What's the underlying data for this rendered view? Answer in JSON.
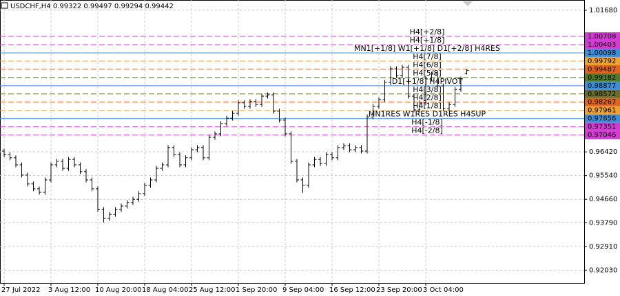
{
  "chart_data": {
    "type": "ohlc",
    "title": "USDCHF,H4  0.99322 0.99497 0.99294 0.99442",
    "categories": [
      "27 Jul 2022",
      null,
      null,
      null,
      null,
      null,
      null,
      null,
      "3 Aug 12:00",
      null,
      null,
      null,
      null,
      null,
      null,
      null,
      "10 Aug 20:00",
      null,
      null,
      null,
      null,
      null,
      null,
      null,
      "18 Aug 04:00",
      null,
      null,
      null,
      null,
      null,
      null,
      null,
      "25 Aug 12:00",
      null,
      null,
      null,
      null,
      null,
      null,
      null,
      "1 Sep 20:00",
      null,
      null,
      null,
      null,
      null,
      null,
      null,
      "9 Sep 04:00",
      null,
      null,
      null,
      null,
      null,
      null,
      null,
      "16 Sep 12:00",
      null,
      null,
      null,
      null,
      null,
      null,
      null,
      "23 Sep 20:00",
      null,
      null,
      null,
      null,
      null,
      null,
      null,
      "3 Oct 04:00",
      null,
      null,
      null,
      null,
      null,
      null,
      null
    ],
    "open": [
      0.9645,
      0.9632,
      0.962,
      0.9594,
      0.9556,
      0.9523,
      0.9505,
      0.9492,
      0.9538,
      0.9594,
      0.9607,
      0.9581,
      0.9614,
      0.9594,
      0.9569,
      0.9538,
      0.9505,
      0.9428,
      0.9395,
      0.941,
      0.9428,
      0.9441,
      0.9454,
      0.9466,
      0.9487,
      0.9518,
      0.9538,
      0.9581,
      0.9594,
      0.9658,
      0.9632,
      0.9594,
      0.962,
      0.965,
      0.9658,
      0.962,
      0.9696,
      0.9709,
      0.9747,
      0.9767,
      0.9785,
      0.9824,
      0.9811,
      0.9829,
      0.9818,
      0.9849,
      0.9854,
      0.9793,
      0.976,
      0.9709,
      0.9607,
      0.9538,
      0.9518,
      0.9594,
      0.9614,
      0.9599,
      0.9632,
      0.962,
      0.9658,
      0.9665,
      0.965,
      0.9658,
      0.9645,
      0.9772,
      0.9811,
      0.9836,
      0.99,
      0.9951,
      0.9926,
      0.9956,
      0.9849,
      0.9798,
      0.9824,
      0.9913,
      0.9931,
      0.9887,
      0.9803,
      0.9818,
      0.9874,
      0.99322
    ],
    "high": [
      0.9654,
      0.9641,
      0.9629,
      0.9603,
      0.9565,
      0.9532,
      0.9514,
      0.9547,
      0.9603,
      0.9616,
      0.9616,
      0.9623,
      0.9623,
      0.9603,
      0.9578,
      0.9547,
      0.9514,
      0.9437,
      0.9419,
      0.9437,
      0.945,
      0.9463,
      0.9475,
      0.9496,
      0.9527,
      0.9547,
      0.959,
      0.9603,
      0.9667,
      0.9667,
      0.9641,
      0.9629,
      0.9659,
      0.9667,
      0.9667,
      0.9705,
      0.9718,
      0.9756,
      0.9776,
      0.9794,
      0.9833,
      0.9833,
      0.9838,
      0.9838,
      0.9858,
      0.9863,
      0.9863,
      0.9802,
      0.9769,
      0.9718,
      0.9616,
      0.9547,
      0.9603,
      0.9623,
      0.9623,
      0.9641,
      0.9641,
      0.9667,
      0.9674,
      0.9674,
      0.9667,
      0.9667,
      0.9781,
      0.982,
      0.9845,
      0.9909,
      0.996,
      0.996,
      0.9965,
      0.9965,
      0.9858,
      0.9833,
      0.9922,
      0.994,
      0.994,
      0.9896,
      0.9827,
      0.9883,
      0.9922,
      0.99497
    ],
    "low": [
      0.9623,
      0.9611,
      0.9585,
      0.9547,
      0.9514,
      0.9496,
      0.9483,
      0.9483,
      0.9529,
      0.9585,
      0.9572,
      0.9572,
      0.9585,
      0.956,
      0.9529,
      0.9496,
      0.9419,
      0.938,
      0.9386,
      0.9401,
      0.9419,
      0.9432,
      0.9445,
      0.9457,
      0.9478,
      0.9509,
      0.9529,
      0.9572,
      0.9585,
      0.9623,
      0.9585,
      0.9585,
      0.9611,
      0.9641,
      0.9611,
      0.9611,
      0.9687,
      0.97,
      0.9738,
      0.9758,
      0.9776,
      0.9802,
      0.9802,
      0.9809,
      0.9809,
      0.984,
      0.9784,
      0.9751,
      0.97,
      0.9598,
      0.9529,
      0.949,
      0.9509,
      0.9585,
      0.959,
      0.959,
      0.9611,
      0.9611,
      0.9649,
      0.9641,
      0.9641,
      0.9636,
      0.9636,
      0.9763,
      0.9802,
      0.9827,
      0.9891,
      0.9917,
      0.9917,
      0.984,
      0.9789,
      0.9789,
      0.9815,
      0.9904,
      0.9878,
      0.9794,
      0.9794,
      0.9809,
      0.9865,
      0.99294
    ],
    "close": [
      0.9632,
      0.962,
      0.9594,
      0.9556,
      0.9523,
      0.9505,
      0.9492,
      0.9538,
      0.9594,
      0.9607,
      0.9581,
      0.9614,
      0.9594,
      0.9569,
      0.9538,
      0.9505,
      0.9428,
      0.9395,
      0.941,
      0.9428,
      0.9441,
      0.9454,
      0.9466,
      0.9487,
      0.9518,
      0.9538,
      0.9581,
      0.9594,
      0.9658,
      0.9632,
      0.9594,
      0.962,
      0.965,
      0.9658,
      0.962,
      0.9696,
      0.9709,
      0.9747,
      0.9767,
      0.9785,
      0.9824,
      0.9811,
      0.9829,
      0.9818,
      0.9849,
      0.9854,
      0.9793,
      0.976,
      0.9709,
      0.9607,
      0.9538,
      0.9518,
      0.9594,
      0.9614,
      0.9599,
      0.9632,
      0.962,
      0.9658,
      0.9665,
      0.965,
      0.9658,
      0.9645,
      0.9772,
      0.9811,
      0.9836,
      0.99,
      0.9951,
      0.9926,
      0.9956,
      0.9849,
      0.9798,
      0.9824,
      0.9913,
      0.9931,
      0.9887,
      0.9803,
      0.9818,
      0.9874,
      0.9913,
      0.99442
    ],
    "color": "#000000",
    "ylim": [
      0.91554,
      1.0206
    ],
    "yticks": [
      {
        "value": 1.0168,
        "label": "1.01680"
      },
      {
        "value": 0.9642,
        "label": "0.96420"
      },
      {
        "value": 0.9554,
        "label": "0.95540"
      },
      {
        "value": 0.9466,
        "label": "0.94660"
      },
      {
        "value": 0.9379,
        "label": "0.93790"
      },
      {
        "value": 0.9291,
        "label": "0.92910"
      },
      {
        "value": 0.9203,
        "label": "0.92030"
      }
    ],
    "grid": true,
    "levels": [
      {
        "value": 1.00708,
        "name": "H4[+2/8]",
        "color": "#d23cd2",
        "style": "dashed"
      },
      {
        "value": 1.00403,
        "name": "H4[+1/8]",
        "color": "#d23cd2",
        "style": "dashed"
      },
      {
        "value": 1.00098,
        "name": "MN1[+1/8] W1[+1/8] D1[+2/8] H4RES",
        "color": "#3b8fd9",
        "style": "solid"
      },
      {
        "value": 0.99792,
        "name": "H4[7/8]",
        "color": "#f0a030",
        "style": "dashed"
      },
      {
        "value": 0.99487,
        "name": "H4[6/8]",
        "color": "#e0641e",
        "style": "dashed"
      },
      {
        "value": 0.99182,
        "name": "H4[5/8]",
        "color": "#4f7a28",
        "style": "dashed"
      },
      {
        "value": 0.98877,
        "name": "D1[+1/8] H4PIVOT",
        "color": "#3b8fd9",
        "style": "solid"
      },
      {
        "value": 0.98572,
        "name": "H4[3/8]",
        "color": "#6b6b2a",
        "style": "dashed"
      },
      {
        "value": 0.98267,
        "name": "H4[2/8]",
        "color": "#e0641e",
        "style": "dashed"
      },
      {
        "value": 0.97961,
        "name": "H4[1/8]",
        "color": "#f0a030",
        "style": "dashed"
      },
      {
        "value": 0.97656,
        "name": "MN1RES W1RES D1RES H4SUP",
        "color": "#3b8fd9",
        "style": "solid"
      },
      {
        "value": 0.97351,
        "name": "H4[-1/8]",
        "color": "#d23cd2",
        "style": "dashed"
      },
      {
        "value": 0.97046,
        "name": "H4[-2/8]",
        "color": "#d23cd2",
        "style": "dashed"
      }
    ]
  }
}
